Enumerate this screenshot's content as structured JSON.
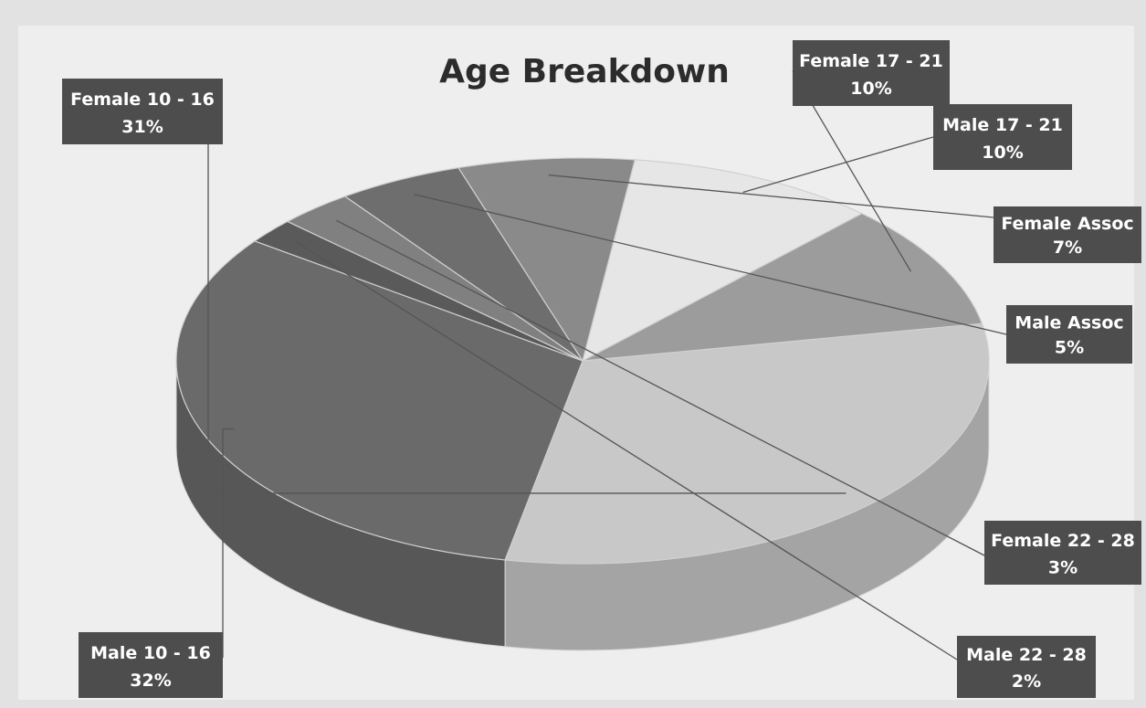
{
  "chart_data": {
    "type": "pie",
    "title": "Age Breakdown",
    "categories": [
      "Female 10 - 16",
      "Female 17 - 21",
      "Male 17 - 21",
      "Female Assoc",
      "Male Assoc",
      "Female 22 - 28",
      "Male 22 - 28",
      "Male 10 - 16"
    ],
    "values": [
      31,
      10,
      10,
      7,
      5,
      3,
      2,
      32
    ],
    "value_labels": [
      "31%",
      "10%",
      "10%",
      "7%",
      "5%",
      "3%",
      "2%",
      "32%"
    ],
    "colors": [
      "#c8c8c8",
      "#9c9c9c",
      "#e6e6e6",
      "#8a8a8a",
      "#6e6e6e",
      "#808080",
      "#5a5a5a",
      "#6a6a6a"
    ],
    "legend": "none"
  }
}
